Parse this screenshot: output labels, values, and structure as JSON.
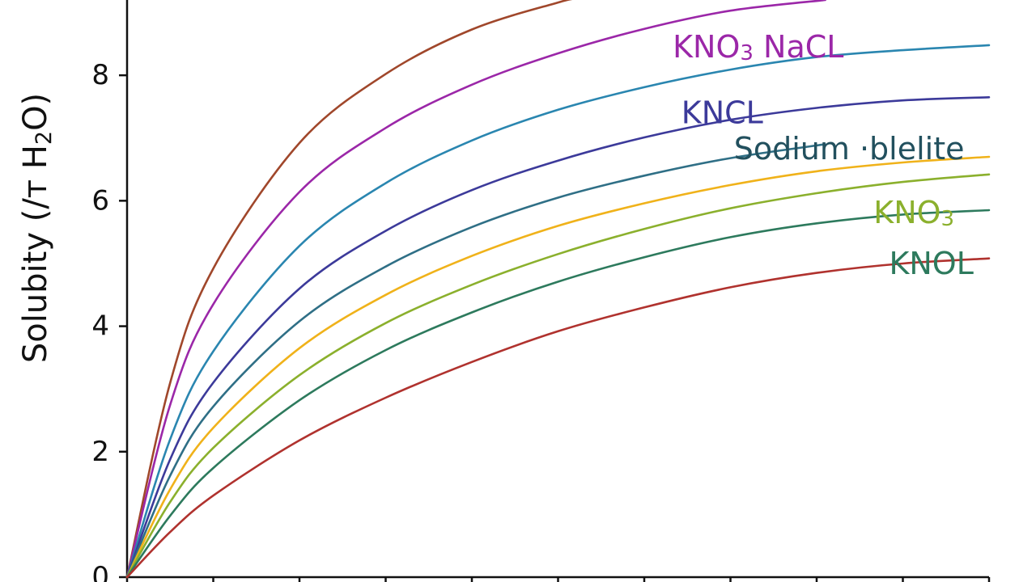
{
  "chart_data": {
    "type": "line",
    "title": "",
    "xlabel": "",
    "ylabel": {
      "main": "Solubity (/т H",
      "sub": "2",
      "tail": "O)"
    },
    "xlim": [
      0,
      10
    ],
    "ylim": [
      0,
      9.2
    ],
    "x_ticks": [
      0,
      1,
      2,
      3,
      4,
      5,
      6,
      7,
      8,
      9,
      10
    ],
    "y_ticks": [
      0,
      2,
      4,
      6,
      8
    ],
    "y_tick_labels": [
      "0",
      "2",
      "4",
      "6",
      "8"
    ],
    "grid": false,
    "series": [
      {
        "color": "#a0472b",
        "x": [
          0,
          0.5,
          1,
          2,
          3,
          4,
          5,
          5.2
        ],
        "y": [
          0,
          3.1,
          4.92,
          6.92,
          8.02,
          8.73,
          9.16,
          9.22
        ]
      },
      {
        "color": "#9b27a8",
        "x": [
          0,
          0.5,
          1,
          2,
          3,
          4,
          5,
          6,
          7,
          8.1
        ],
        "y": [
          0,
          2.75,
          4.35,
          6.14,
          7.16,
          7.85,
          8.35,
          8.74,
          9.03,
          9.2
        ]
      },
      {
        "color": "#2a86b0",
        "x": [
          0,
          0.5,
          1,
          2,
          3,
          4,
          5,
          6,
          7,
          8,
          9,
          10
        ],
        "y": [
          0,
          2.2,
          3.6,
          5.28,
          6.28,
          6.96,
          7.45,
          7.81,
          8.09,
          8.29,
          8.4,
          8.48
        ]
      },
      {
        "color": "#3c3a9a",
        "x": [
          0,
          0.5,
          1,
          2,
          3,
          4,
          5,
          6,
          7,
          8,
          9,
          10
        ],
        "y": [
          0,
          1.88,
          3.1,
          4.6,
          5.52,
          6.17,
          6.64,
          7.01,
          7.29,
          7.48,
          7.6,
          7.65
        ]
      },
      {
        "color": "#2f6f86",
        "x": [
          0,
          0.5,
          1,
          2,
          3,
          4,
          5,
          6,
          7,
          8.1
        ],
        "y": [
          0,
          1.62,
          2.72,
          4.08,
          4.95,
          5.58,
          6.05,
          6.4,
          6.68,
          6.9
        ]
      },
      {
        "color": "#f0b21a",
        "x": [
          0,
          0.5,
          1,
          2,
          3,
          4,
          5,
          6,
          7,
          8,
          9,
          10
        ],
        "y": [
          0,
          1.4,
          2.38,
          3.65,
          4.5,
          5.12,
          5.6,
          5.96,
          6.25,
          6.47,
          6.61,
          6.7
        ]
      },
      {
        "color": "#8bb02d",
        "x": [
          0,
          0.5,
          1,
          2,
          3,
          4,
          5,
          6,
          7,
          8,
          9,
          10
        ],
        "y": [
          0,
          1.2,
          2.06,
          3.22,
          4.05,
          4.66,
          5.15,
          5.55,
          5.88,
          6.12,
          6.3,
          6.42
        ]
      },
      {
        "color": "#2d7a5d",
        "x": [
          0,
          0.5,
          1,
          2,
          3,
          4,
          5,
          6,
          7,
          8,
          9,
          10
        ],
        "y": [
          0,
          0.98,
          1.74,
          2.82,
          3.62,
          4.22,
          4.71,
          5.1,
          5.42,
          5.64,
          5.78,
          5.85
        ]
      },
      {
        "color": "#b0322e",
        "x": [
          0,
          0.5,
          1,
          2,
          3,
          4,
          5,
          6,
          7,
          8,
          9,
          10
        ],
        "y": [
          0,
          0.72,
          1.3,
          2.18,
          2.86,
          3.43,
          3.92,
          4.3,
          4.62,
          4.85,
          5.0,
          5.08
        ]
      }
    ],
    "annotations": [
      {
        "text": "KNO",
        "sub": "3",
        "tail": " NaCL",
        "color": "#9b27a8",
        "x": 6.33,
        "y": 8.45
      },
      {
        "text": "KNCL",
        "sub": "",
        "tail": "",
        "color": "#3c3a9a",
        "x": 6.43,
        "y": 7.4
      },
      {
        "text": "Sodium ·blelite",
        "sub": "",
        "tail": "",
        "color": "#22505e",
        "x": 7.04,
        "y": 6.83
      },
      {
        "text": "KNO",
        "sub": "3",
        "tail": "",
        "color": "#8bb02d",
        "x": 8.66,
        "y": 5.81
      },
      {
        "text": "KNOL",
        "sub": "",
        "tail": "",
        "color": "#2d7a5d",
        "x": 8.84,
        "y": 5.0
      }
    ]
  }
}
